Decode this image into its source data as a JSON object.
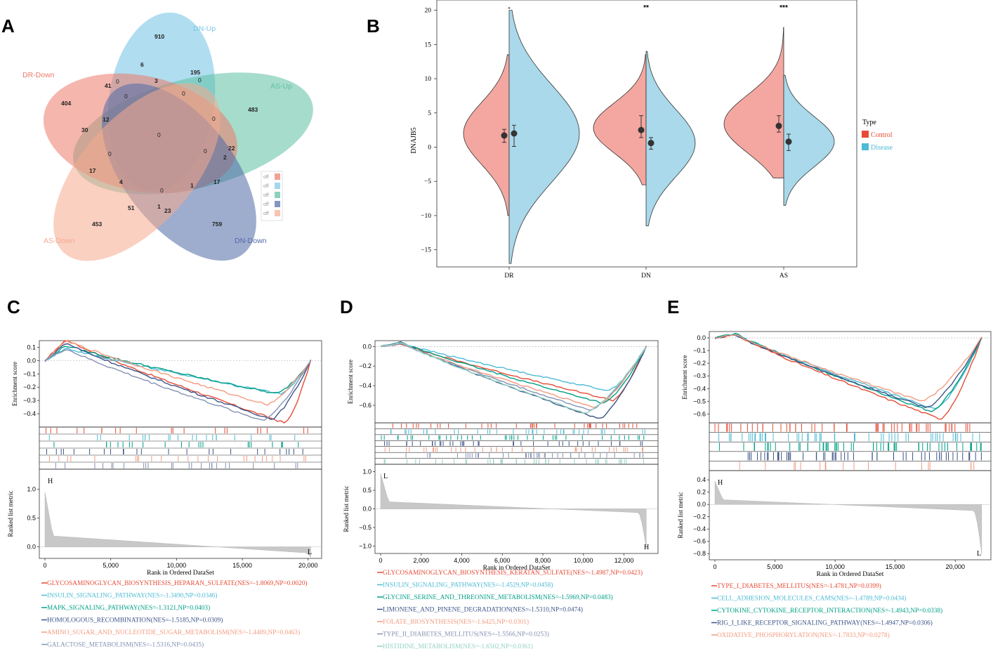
{
  "panels": {
    "A": "A",
    "B": "B",
    "C": "C",
    "D": "D",
    "E": "E"
  },
  "colors": {
    "dr_down": "#ec7a6a",
    "dn_up": "#7cc6e6",
    "as_up": "#5dbfa2",
    "dn_down": "#4f6aa6",
    "as_down": "#f6a98e",
    "control": "#f4a7a0",
    "disease": "#a9d9ea",
    "control_legend": "#e64b35",
    "disease_legend": "#4dbbd5"
  },
  "venn": {
    "sets": [
      {
        "name": "DR-Down",
        "color": "#ec7a6a"
      },
      {
        "name": "DN-Up",
        "color": "#7cc6e6"
      },
      {
        "name": "AS-Up",
        "color": "#5dbfa2"
      },
      {
        "name": "DN-Down",
        "color": "#4f6aa6"
      },
      {
        "name": "AS-Down",
        "color": "#f6a98e"
      }
    ],
    "counts": [
      "910",
      "6",
      "195",
      "404",
      "41",
      "0",
      "3",
      "0",
      "0",
      "0",
      "483",
      "30",
      "12",
      "0",
      "0",
      "22",
      "0",
      "2",
      "17",
      "4",
      "0",
      "1",
      "17",
      "453",
      "51",
      "1",
      "23",
      "759",
      "0"
    ],
    "legend_labels": [
      "off",
      "off",
      "off",
      "off",
      "off"
    ]
  },
  "chart_data": [
    {
      "type": "split-violin",
      "ylabel": "DNAJB5",
      "ylim": [
        -17,
        21
      ],
      "yticks": [
        "20",
        "15",
        "10",
        "5",
        "0",
        "−5",
        "−10",
        "−15"
      ],
      "categories": [
        "DR",
        "DN",
        "AS"
      ],
      "significance": [
        "-",
        "**",
        "***"
      ],
      "series": [
        {
          "name": "Control",
          "means": [
            1.7,
            2.5,
            3.1
          ],
          "err_low": [
            0.7,
            1.4,
            2.2
          ],
          "err_high": [
            2.6,
            4.6,
            4.6
          ],
          "range_min": [
            -10,
            -5.5,
            -4.5
          ],
          "range_max": [
            13.5,
            13.5,
            17.5
          ]
        },
        {
          "name": "Disease",
          "means": [
            2.0,
            0.6,
            0.8
          ],
          "err_low": [
            0.1,
            -0.3,
            -0.5
          ],
          "err_high": [
            3.2,
            1.4,
            1.9
          ],
          "range_min": [
            -17,
            -11.5,
            -8.5
          ],
          "range_max": [
            20,
            14,
            10.5
          ]
        }
      ],
      "legend_title": "Type",
      "legend": [
        "Control",
        "Disease"
      ]
    },
    {
      "type": "gsea",
      "panel": "C",
      "xlabel": "Rank in Ordered DataSet",
      "ylabel_top": "Enrichment score",
      "ylabel_bottom": "Ranked list metric",
      "xticks": [
        "0",
        "5,000",
        "10,000",
        "15,000",
        "20,000"
      ],
      "es_ticks": [
        "0.1",
        "0.0",
        "−0.1",
        "−0.2",
        "−0.3",
        "−0.4"
      ],
      "metric_ticks": [
        "1.0",
        "0.5",
        "0.0"
      ],
      "corner_top": "H",
      "corner_bottom": "L",
      "legend": [
        "GLYCOSAMINOGLYCAN_BIOSYNTHESIS_HEPARAN_SULFATE(NES=-1.8069,NP=0.0020)",
        "INSULIN_SIGNALING_PATHWAY(NES=-1.3490,NP=0.0346)",
        "MAPK_SIGNALING_PATHWAY(NES=-1.3121,NP=0.0403)",
        "HOMOLOGOUS_RECOMBINATION(NES=-1.5185,NP=0.0309)",
        "AMINO_SUGAR_AND_NUCLEOTIDE_SUGAR_METABOLISM(NES=-1.4489,NP=0.0463)",
        "GALACTOSE_METABOLISM(NES=-1.5316,NP=0.0435)"
      ],
      "min_es": [
        -0.47,
        -0.25,
        -0.25,
        -0.44,
        -0.33,
        -0.45
      ]
    },
    {
      "type": "gsea",
      "panel": "D",
      "xlabel": "Rank in Ordered DataSet",
      "ylabel_top": "Enrichment score",
      "ylabel_bottom": "Ranked list metric",
      "xticks": [
        "0",
        "2,000",
        "4,000",
        "6,000",
        "8,000",
        "10,000",
        "12,000"
      ],
      "es_ticks": [
        "0.0",
        "−0.2",
        "−0.4",
        "−0.6"
      ],
      "metric_ticks": [
        "1.0",
        "0.5",
        "0.0",
        "−0.5",
        "−1.0"
      ],
      "corner_top": "L",
      "corner_bottom": "H",
      "legend": [
        "GLYCOSAMINOGLYCAN_BIOSYNTHESIS_KERATAN_SULFATE(NES=-1.4987,NP=0.0423)",
        "INSULIN_SIGNALING_PATHWAY(NES=-1.4529,NP=0.0458)",
        "GLYCINE_SERINE_AND_THREONINE_METABOLISM(NES=-1.5969,NP=0.0483)",
        "LIMONENE_AND_PINENE_DEGRADATION(NES=-1.5310,NP=0.0474)",
        "FOLATE_BIOSYNTHESIS(NES=-1.6425,NP=0.0301)",
        "TYPE_II_DIABETES_MELLITUS(NES=-1.5566,NP=0.0253)",
        "HISTIDINE_METABOLISM(NES=-1.6502,NP=0.0361)"
      ],
      "min_es": [
        -0.55,
        -0.45,
        -0.58,
        -0.74,
        -0.62,
        -0.65,
        -0.68
      ]
    },
    {
      "type": "gsea",
      "panel": "E",
      "xlabel": "Rank in Ordered DataSet",
      "ylabel_top": "Enrichment score",
      "ylabel_bottom": "Ranked list metric",
      "xticks": [
        "0",
        "5,000",
        "10,000",
        "15,000",
        "20,000"
      ],
      "es_ticks": [
        "0.0",
        "−0.1",
        "−0.2",
        "−0.3",
        "−0.4",
        "−0.5",
        "−0.6"
      ],
      "metric_ticks": [
        "0.4",
        "0.2",
        "0.0",
        "−0.2",
        "−0.4",
        "−0.6",
        "−0.8"
      ],
      "corner_top": "H",
      "corner_bottom": "L",
      "legend": [
        "TYPE_I_DIABETES_MELLITUS(NES=-1.4781,NP=0.0399)",
        "CELL_ADHESION_MOLECULES_CAMS(NES=-1.4789,NP=0.0434)",
        "CYTOKINE_CYTOKINE_RECEPTOR_INTERACTION(NES=-1.4943,NP=0.0338)",
        "RIG_I_LIKE_RECEPTOR_SIGNALING_PATHWAY(NES=-1.4947,NP=0.0306)",
        "OXIDATIVE_PHOSPHORYLATION(NES=-1.7833,NP=0.0278)"
      ],
      "min_es": [
        -0.64,
        -0.56,
        -0.58,
        -0.55,
        -0.5
      ]
    }
  ]
}
